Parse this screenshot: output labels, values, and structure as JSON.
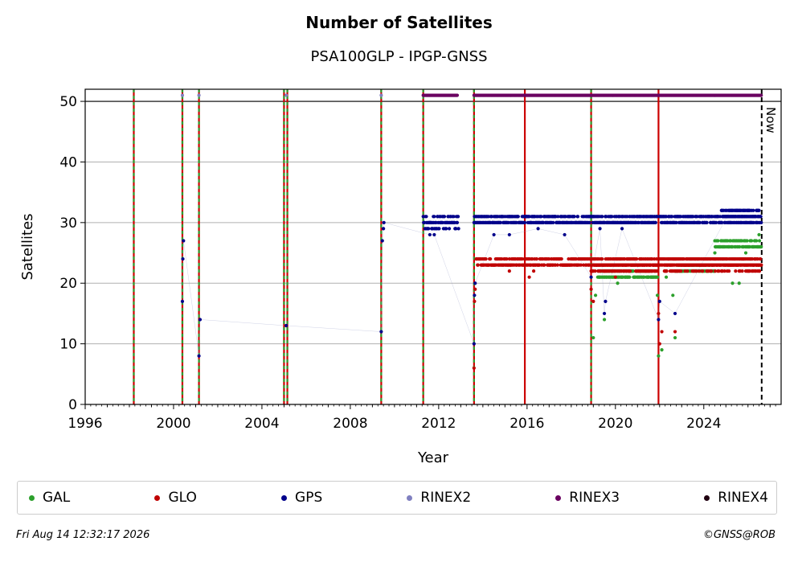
{
  "chart_data": {
    "type": "scatter",
    "title": "Number of Satellites",
    "subtitle": "PSA100GLP - IPGP-GNSS",
    "xlabel": "Year",
    "ylabel": "Satellites",
    "xlim": [
      1996,
      2027.5
    ],
    "ylim": [
      0,
      52
    ],
    "x_ticks": [
      1996,
      2000,
      2004,
      2008,
      2012,
      2016,
      2020,
      2024
    ],
    "y_ticks": [
      0,
      10,
      20,
      30,
      40,
      50
    ],
    "grid": "horizontal",
    "now_label": "Now",
    "now_year": 2026.62,
    "event_lines": [
      {
        "year": 1998.2,
        "style": "red-green-dashed"
      },
      {
        "year": 2000.4,
        "style": "red-green-dashed"
      },
      {
        "year": 2001.15,
        "style": "red-green-dashed"
      },
      {
        "year": 2005.0,
        "style": "red-green-dashed"
      },
      {
        "year": 2005.15,
        "style": "red-green-dashed"
      },
      {
        "year": 2009.4,
        "style": "red-green-dashed"
      },
      {
        "year": 2011.3,
        "style": "red-green-dashed"
      },
      {
        "year": 2013.6,
        "style": "red-green-dashed"
      },
      {
        "year": 2015.9,
        "style": "red"
      },
      {
        "year": 2018.9,
        "style": "red-green-dashed"
      },
      {
        "year": 2021.95,
        "style": "red"
      }
    ],
    "series": [
      {
        "name": "GAL",
        "color": "#2ca02c",
        "points": [
          [
            2019.0,
            11
          ],
          [
            2019.1,
            18
          ],
          [
            2019.3,
            21
          ],
          [
            2019.5,
            14
          ],
          [
            2019.7,
            22
          ],
          [
            2020.1,
            20
          ],
          [
            2020.5,
            22
          ],
          [
            2021.0,
            22
          ],
          [
            2021.5,
            21
          ],
          [
            2021.9,
            18
          ],
          [
            2021.95,
            8
          ],
          [
            2022.1,
            9
          ],
          [
            2022.3,
            21
          ],
          [
            2022.6,
            18
          ],
          [
            2022.7,
            11
          ],
          [
            2023.0,
            22
          ],
          [
            2023.5,
            23
          ],
          [
            2024.0,
            24
          ],
          [
            2024.5,
            25
          ],
          [
            2025.0,
            27
          ],
          [
            2025.3,
            20
          ],
          [
            2025.6,
            20
          ],
          [
            2025.9,
            25
          ],
          [
            2026.3,
            27
          ],
          [
            2026.5,
            28
          ]
        ],
        "ranges": [
          [
            2019.2,
            2021.9,
            21,
            22
          ],
          [
            2022.7,
            2024.5,
            22,
            23
          ],
          [
            2024.5,
            2026.6,
            26,
            27
          ]
        ]
      },
      {
        "name": "GLO",
        "color": "#c00000",
        "points": [
          [
            2013.6,
            6
          ],
          [
            2013.62,
            17
          ],
          [
            2013.65,
            19
          ],
          [
            2013.7,
            24
          ],
          [
            2014.0,
            23
          ],
          [
            2014.5,
            23
          ],
          [
            2015.2,
            22
          ],
          [
            2016.1,
            21
          ],
          [
            2016.3,
            22
          ],
          [
            2017.0,
            23
          ],
          [
            2018.9,
            19
          ],
          [
            2019.0,
            17
          ],
          [
            2019.5,
            22
          ],
          [
            2020.0,
            21
          ],
          [
            2021.95,
            15
          ],
          [
            2022.0,
            10
          ],
          [
            2022.1,
            12
          ],
          [
            2022.7,
            12
          ],
          [
            2023.0,
            23
          ],
          [
            2025.5,
            23
          ],
          [
            2026.0,
            22
          ]
        ],
        "ranges": [
          [
            2013.7,
            2026.6,
            23,
            24
          ],
          [
            2018.9,
            2021.9,
            22,
            23
          ],
          [
            2022.2,
            2026.6,
            22,
            24
          ]
        ]
      },
      {
        "name": "GPS",
        "color": "#00008b",
        "points": [
          [
            2000.4,
            17
          ],
          [
            2000.42,
            24
          ],
          [
            2000.45,
            27
          ],
          [
            2001.15,
            8
          ],
          [
            2001.2,
            14
          ],
          [
            2005.1,
            13
          ],
          [
            2009.4,
            12
          ],
          [
            2009.45,
            27
          ],
          [
            2009.5,
            29
          ],
          [
            2009.52,
            30
          ],
          [
            2011.6,
            28
          ],
          [
            2011.8,
            28
          ],
          [
            2013.6,
            10
          ],
          [
            2013.62,
            18
          ],
          [
            2013.65,
            20
          ],
          [
            2014.5,
            28
          ],
          [
            2015.2,
            28
          ],
          [
            2016.5,
            29
          ],
          [
            2017.7,
            28
          ],
          [
            2018.9,
            21
          ],
          [
            2019.3,
            29
          ],
          [
            2019.5,
            15
          ],
          [
            2019.55,
            17
          ],
          [
            2020.3,
            29
          ],
          [
            2021.95,
            14
          ],
          [
            2022.0,
            17
          ],
          [
            2022.7,
            15
          ],
          [
            2025.2,
            32
          ]
        ],
        "ranges": [
          [
            2011.3,
            2012.9,
            29,
            31
          ],
          [
            2013.6,
            2021.9,
            30,
            31
          ],
          [
            2022.0,
            2026.6,
            30,
            31
          ],
          [
            2024.8,
            2026.5,
            31,
            32
          ]
        ]
      },
      {
        "name": "RINEX2",
        "color": "#8080c0",
        "points": [
          [
            2000.4,
            51
          ],
          [
            2001.15,
            51
          ],
          [
            2005.1,
            51
          ],
          [
            2009.4,
            51
          ]
        ],
        "ranges": []
      },
      {
        "name": "RINEX3",
        "color": "#6a0060",
        "points": [],
        "ranges": [
          [
            2011.3,
            2012.85,
            51,
            51
          ],
          [
            2013.6,
            2026.6,
            51,
            51
          ]
        ]
      },
      {
        "name": "RINEX4",
        "color": "#200010",
        "points": [],
        "ranges": []
      }
    ]
  },
  "legend": [
    {
      "label": "GAL",
      "color": "#2ca02c"
    },
    {
      "label": "GLO",
      "color": "#c00000"
    },
    {
      "label": "GPS",
      "color": "#00008b"
    },
    {
      "label": "RINEX2",
      "color": "#8080c0"
    },
    {
      "label": "RINEX3",
      "color": "#6a0060"
    },
    {
      "label": "RINEX4",
      "color": "#200010"
    }
  ],
  "footer": {
    "timestamp": "Fri Aug 14 12:32:17 2026",
    "copyright": "©GNSS@ROB"
  }
}
